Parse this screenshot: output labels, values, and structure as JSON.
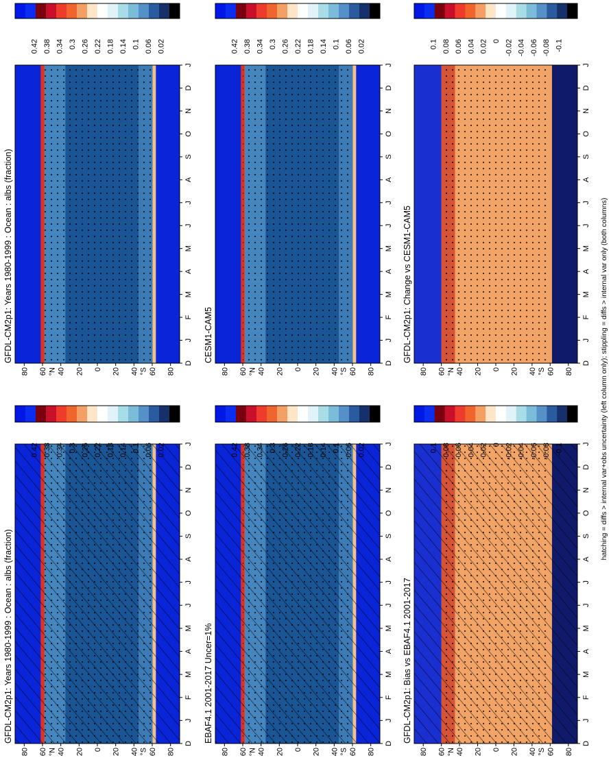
{
  "figure": {
    "footnote": "hatching = diffs > internal var+obs uncertainty (left column only); stippling = diffs > internal var only (both columns)",
    "lat_ticks": [
      "80",
      "60",
      "40",
      "20",
      "0",
      "20",
      "40",
      "60",
      "80"
    ],
    "lat_hemi": {
      "north": "°N",
      "south": "°S"
    },
    "month_ticks": [
      "D",
      "J",
      "F",
      "M",
      "A",
      "M",
      "J",
      "J",
      "A",
      "S",
      "O",
      "N",
      "D",
      "J"
    ]
  },
  "chart_data": [
    {
      "type": "heatmap",
      "panel": "top-left",
      "title": "GFDL-CM2p1: Years 1980-1999 : Ocean : albs (fraction)",
      "x_axis": "month",
      "y_axis": "latitude",
      "ylim": [
        -90,
        90
      ],
      "colorbar": [
        "0.42",
        "0.38",
        "0.34",
        "0.3",
        "0.26",
        "0.22",
        "0.18",
        "0.14",
        "0.1",
        "0.06",
        "0.02"
      ],
      "hatching": true,
      "stippling": true
    },
    {
      "type": "heatmap",
      "panel": "top-right",
      "title": "GFDL-CM2p1: Years 1980-1999 : Ocean : albs (fraction)",
      "x_axis": "month",
      "y_axis": "latitude",
      "ylim": [
        -90,
        90
      ],
      "colorbar": [
        "0.42",
        "0.38",
        "0.34",
        "0.3",
        "0.26",
        "0.22",
        "0.18",
        "0.14",
        "0.1",
        "0.06",
        "0.02"
      ],
      "hatching": false,
      "stippling": true
    },
    {
      "type": "heatmap",
      "panel": "middle-left",
      "title": "EBAF4.1 2001-2017 Uncer=1%",
      "x_axis": "month",
      "y_axis": "latitude",
      "ylim": [
        -90,
        90
      ],
      "colorbar": [
        "0.42",
        "0.38",
        "0.34",
        "0.3",
        "0.26",
        "0.22",
        "0.18",
        "0.14",
        "0.1",
        "0.06",
        "0.02"
      ],
      "hatching": true,
      "stippling": true
    },
    {
      "type": "heatmap",
      "panel": "middle-right",
      "title": "CESM1-CAM5",
      "x_axis": "month",
      "y_axis": "latitude",
      "ylim": [
        -90,
        90
      ],
      "colorbar": [
        "0.42",
        "0.38",
        "0.34",
        "0.3",
        "0.26",
        "0.22",
        "0.18",
        "0.14",
        "0.1",
        "0.06",
        "0.02"
      ],
      "hatching": false,
      "stippling": true
    },
    {
      "type": "heatmap",
      "panel": "bottom-left",
      "title": "GFDL-CM2p1: Bias vs EBAF4.1 2001-2017",
      "x_axis": "month",
      "y_axis": "latitude",
      "ylim": [
        -90,
        90
      ],
      "colorbar": [
        "0.1",
        "0.08",
        "0.06",
        "0.04",
        "0.02",
        "0",
        "-0.02",
        "-0.04",
        "-0.06",
        "-0.08",
        "-0.1"
      ],
      "hatching": true,
      "stippling": true
    },
    {
      "type": "heatmap",
      "panel": "bottom-right",
      "title": "GFDL-CM2p1: Change vs CESM1-CAM5",
      "x_axis": "month",
      "y_axis": "latitude",
      "ylim": [
        -90,
        90
      ],
      "colorbar": [
        "0.1",
        "0.08",
        "0.06",
        "0.04",
        "0.02",
        "0",
        "-0.02",
        "-0.04",
        "-0.06",
        "-0.08",
        "-0.1"
      ],
      "hatching": false,
      "stippling": true
    }
  ],
  "colors": {
    "cbar_stops": [
      "#0018e6",
      "#0a2df0",
      "#7a0010",
      "#c8102a",
      "#ef3b2c",
      "#f0652d",
      "#f4a064",
      "#fde6c8",
      "#ffffff",
      "#e0f3f8",
      "#a8dde8",
      "#7bbcd8",
      "#5591c8",
      "#2a5aa0",
      "#16306c",
      "#000000"
    ],
    "albedo_base": "#1a5596",
    "albedo_low": "#0a24d8",
    "bias_base": "#f1a465",
    "bias_neg": "#101a6a"
  }
}
